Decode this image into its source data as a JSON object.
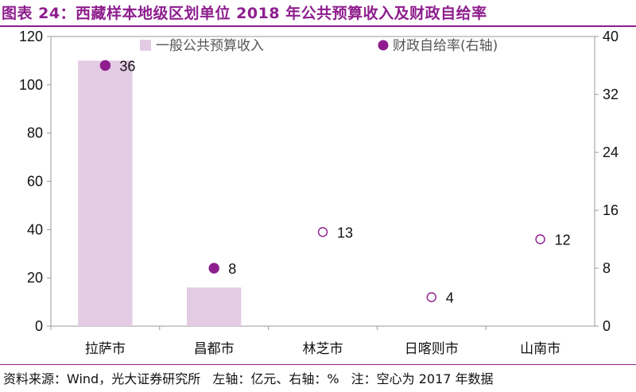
{
  "title": "图表 24：西藏样本地级区划单位 2018 年公共预算收入及财政自给率",
  "source": {
    "text": "资料来源：Wind，光大证券研究所",
    "axis_note": "左轴：亿元、右轴：%",
    "note": "注：空心为 2017 年数据"
  },
  "colors": {
    "bar": "#e3cbe3",
    "dot": "#8e1e8e",
    "frame": "#999999"
  },
  "chart_data": {
    "type": "bar",
    "categories": [
      "拉萨市",
      "昌都市",
      "林芝市",
      "日喀则市",
      "山南市"
    ],
    "series": [
      {
        "name": "一般公共预算收入",
        "axis": "left",
        "kind": "bar",
        "values": [
          110,
          16,
          0,
          0,
          0
        ]
      },
      {
        "name": "财政自给率(右轴)",
        "axis": "right",
        "kind": "scatter",
        "values": [
          36,
          8,
          13,
          4,
          12
        ],
        "hollow": [
          false,
          false,
          true,
          true,
          true
        ]
      }
    ],
    "left_axis": {
      "ylim": [
        0,
        120
      ],
      "ticks": [
        0,
        20,
        40,
        60,
        80,
        100,
        120
      ]
    },
    "right_axis": {
      "ylim": [
        0,
        40
      ],
      "ticks": [
        0,
        8,
        16,
        24,
        32,
        40
      ]
    },
    "legend": [
      "一般公共预算收入",
      "财政自给率(右轴)"
    ],
    "legend_position": "top"
  }
}
